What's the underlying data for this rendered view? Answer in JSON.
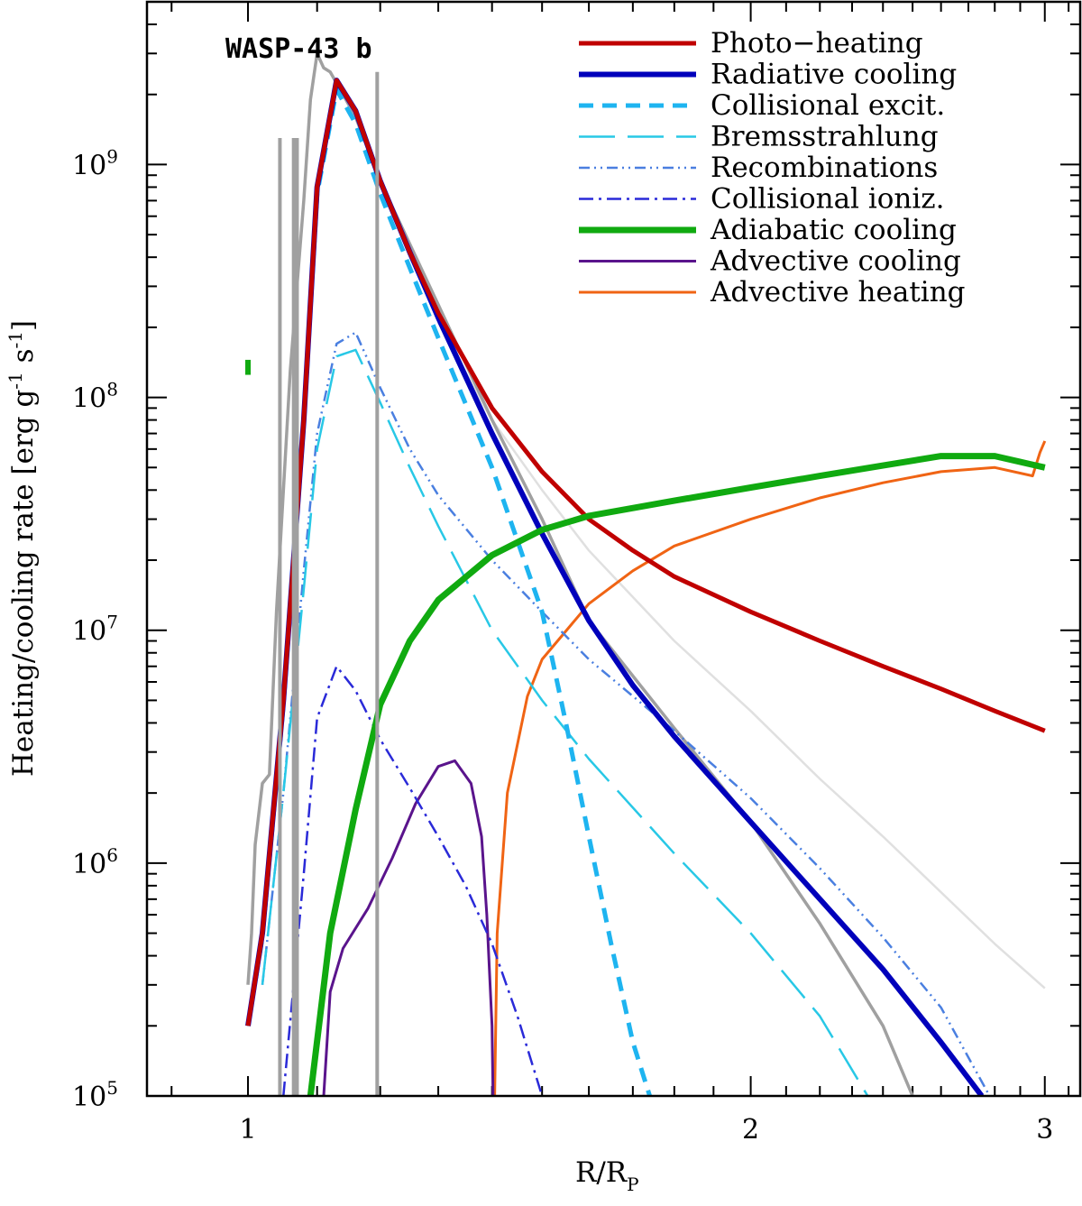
{
  "chart_data": {
    "type": "line",
    "title": "WASP-43 b",
    "xlabel": "R/R",
    "xlabel_sub": "P",
    "ylabel": "Heating/cooling rate [erg g",
    "ylabel_g_exp": "-1",
    "ylabel_s": " s",
    "ylabel_s_exp": "-1",
    "ylabel_close": "]",
    "xscale": "log",
    "yscale": "log",
    "xlim": [
      0.87,
      3.15
    ],
    "ylim": [
      100000,
      5000000000
    ],
    "x_ticks": [
      {
        "value": 1,
        "label": "1"
      },
      {
        "value": 2,
        "label": "2"
      },
      {
        "value": 3,
        "label": "3"
      }
    ],
    "y_ticks": [
      {
        "value": 100000,
        "mantissa": "10",
        "exp": "5"
      },
      {
        "value": 1000000,
        "mantissa": "10",
        "exp": "6"
      },
      {
        "value": 10000000,
        "mantissa": "10",
        "exp": "7"
      },
      {
        "value": 100000000,
        "mantissa": "10",
        "exp": "8"
      },
      {
        "value": 1000000000,
        "mantissa": "10",
        "exp": "9"
      }
    ],
    "series": [
      {
        "name": "Photo−heating",
        "color": "#c00000",
        "width": 5,
        "dash": "",
        "legend": true,
        "x": [
          1.0,
          1.02,
          1.05,
          1.08,
          1.1,
          1.13,
          1.16,
          1.2,
          1.25,
          1.3,
          1.4,
          1.5,
          1.6,
          1.7,
          1.8,
          2.0,
          2.2,
          2.4,
          2.6,
          2.8,
          3.0
        ],
        "y": [
          200000,
          500000,
          5000000,
          80000000,
          800000000,
          2300000000,
          1700000000,
          850000000,
          420000000,
          230000000,
          90000000,
          48000000,
          30000000,
          22000000,
          17000000,
          12000000,
          9000000,
          7000000,
          5600000,
          4500000,
          3700000
        ]
      },
      {
        "name": "Radiative cooling",
        "color": "#0000bb",
        "width": 6,
        "dash": "",
        "legend": true,
        "x": [
          1.0,
          1.02,
          1.05,
          1.08,
          1.1,
          1.13,
          1.16,
          1.2,
          1.25,
          1.3,
          1.4,
          1.5,
          1.6,
          1.7,
          1.8,
          2.0,
          2.2,
          2.4,
          2.6,
          2.75
        ],
        "y": [
          200000,
          500000,
          5000000,
          80000000,
          800000000,
          2300000000,
          1700000000,
          850000000,
          420000000,
          220000000,
          70000000,
          26000000,
          11000000,
          5800000,
          3500000,
          1500000,
          700000,
          350000,
          170000,
          100000
        ]
      },
      {
        "name": "Collisional excit.",
        "color": "#1eb4f0",
        "width": 5,
        "dash": "16,10",
        "legend": true,
        "x": [
          1.0,
          1.02,
          1.05,
          1.08,
          1.1,
          1.13,
          1.16,
          1.2,
          1.25,
          1.3,
          1.4,
          1.5,
          1.55,
          1.6,
          1.65,
          1.7,
          1.74
        ],
        "y": [
          200000,
          480000,
          4800000,
          78000000,
          750000000,
          2100000000,
          1500000000,
          750000000,
          360000000,
          180000000,
          50000000,
          12000000,
          4000000,
          1300000,
          450000,
          170000,
          100000
        ]
      },
      {
        "name": "Bremsstrahlung",
        "color": "#28c8e6",
        "width": 2.5,
        "dash": "40,14",
        "legend": true,
        "x": [
          1.02,
          1.05,
          1.08,
          1.1,
          1.13,
          1.16,
          1.2,
          1.25,
          1.3,
          1.4,
          1.5,
          1.6,
          1.8,
          2.0,
          2.2,
          2.35
        ],
        "y": [
          300000,
          2000000,
          15000000,
          60000000,
          150000000,
          160000000,
          95000000,
          50000000,
          28000000,
          10000000,
          5000000,
          2800000,
          1100000,
          500000,
          220000,
          100000
        ]
      },
      {
        "name": "Recombinations",
        "color": "#4a7fe0",
        "width": 2.5,
        "dash": "12,5,2,5,2,5",
        "legend": true,
        "x": [
          1.02,
          1.05,
          1.08,
          1.1,
          1.13,
          1.16,
          1.2,
          1.25,
          1.3,
          1.4,
          1.5,
          1.6,
          1.8,
          2.0,
          2.2,
          2.4,
          2.6,
          2.78
        ],
        "y": [
          300000,
          2000000,
          18000000,
          70000000,
          170000000,
          190000000,
          110000000,
          60000000,
          38000000,
          20000000,
          12000000,
          7500000,
          3700000,
          1900000,
          950000,
          480000,
          240000,
          100000
        ]
      },
      {
        "name": "Collisional ioniz.",
        "color": "#2a2ad8",
        "width": 2.5,
        "dash": "16,6,3,6",
        "legend": true,
        "x": [
          1.05,
          1.08,
          1.1,
          1.13,
          1.16,
          1.2,
          1.25,
          1.3,
          1.35,
          1.4,
          1.45,
          1.5
        ],
        "y": [
          100000,
          900000,
          4200000,
          7000000,
          5500000,
          3400000,
          2100000,
          1300000,
          800000,
          450000,
          220000,
          100000
        ]
      },
      {
        "name": "Adiabatic cooling",
        "color": "#10aa10",
        "width": 7,
        "dash": "",
        "legend": true,
        "x": [
          1.09,
          1.12,
          1.16,
          1.2,
          1.25,
          1.3,
          1.4,
          1.5,
          1.6,
          1.8,
          2.0,
          2.2,
          2.4,
          2.6,
          2.8,
          3.0
        ],
        "y": [
          100000,
          500000,
          1700000,
          4800000,
          9000000,
          13500000,
          21000000,
          27000000,
          31000000,
          36000000,
          41000000,
          46000000,
          51000000,
          56000000,
          56000000,
          50000000
        ]
      },
      {
        "name": "Advective cooling",
        "color": "#5a148c",
        "width": 3,
        "dash": "",
        "legend": true,
        "x": [
          1.11,
          1.12,
          1.14,
          1.18,
          1.22,
          1.26,
          1.3,
          1.33,
          1.36,
          1.38,
          1.39,
          1.4,
          1.402
        ],
        "y": [
          100000,
          280000,
          430000,
          640000,
          1050000,
          1800000,
          2600000,
          2750000,
          2200000,
          1300000,
          600000,
          200000,
          100000
        ]
      },
      {
        "name": "Advective heating",
        "color": "#f06414",
        "width": 3,
        "dash": "",
        "legend": true,
        "x": [
          1.405,
          1.41,
          1.43,
          1.47,
          1.5,
          1.6,
          1.7,
          1.8,
          2.0,
          2.2,
          2.4,
          2.6,
          2.8,
          2.95,
          2.98,
          3.0
        ],
        "y": [
          100000,
          500000,
          2000000,
          5200000,
          7500000,
          13000000,
          18000000,
          23000000,
          30000000,
          37000000,
          43000000,
          48000000,
          50000000,
          46000000,
          58000000,
          65000000
        ]
      },
      {
        "name": "Gray model (unlabeled)",
        "color": "#a0a0a0",
        "width": 3.5,
        "dash": "",
        "legend": false,
        "x": [
          1.0,
          1.005,
          1.01,
          1.02,
          1.03,
          1.04,
          1.06,
          1.08,
          1.09,
          1.1,
          1.11,
          1.12,
          1.14,
          1.16,
          1.2,
          1.3,
          1.4,
          1.5,
          1.6,
          1.8,
          2.0,
          2.2,
          2.4,
          2.5
        ],
        "y": [
          300000,
          500000,
          1200000,
          2200000,
          2400000,
          12000000,
          130000000,
          700000000,
          1900000000,
          3000000000,
          2600000000,
          2500000000,
          2000000000,
          1600000000,
          850000000,
          250000000,
          80000000,
          30000000,
          11000000,
          3800000,
          1500000,
          550000,
          200000,
          100000
        ]
      },
      {
        "name": "Light gray model (unlabeled)",
        "color": "#e0e0e0",
        "width": 2.5,
        "dash": "",
        "legend": false,
        "x": [
          1.3,
          1.4,
          1.5,
          1.6,
          1.8,
          2.0,
          2.2,
          2.4,
          2.6,
          2.8,
          3.0
        ],
        "y": [
          210000000,
          80000000,
          40000000,
          22000000,
          9000000,
          4500000,
          2300000,
          1300000,
          750000,
          450000,
          290000
        ]
      }
    ]
  }
}
